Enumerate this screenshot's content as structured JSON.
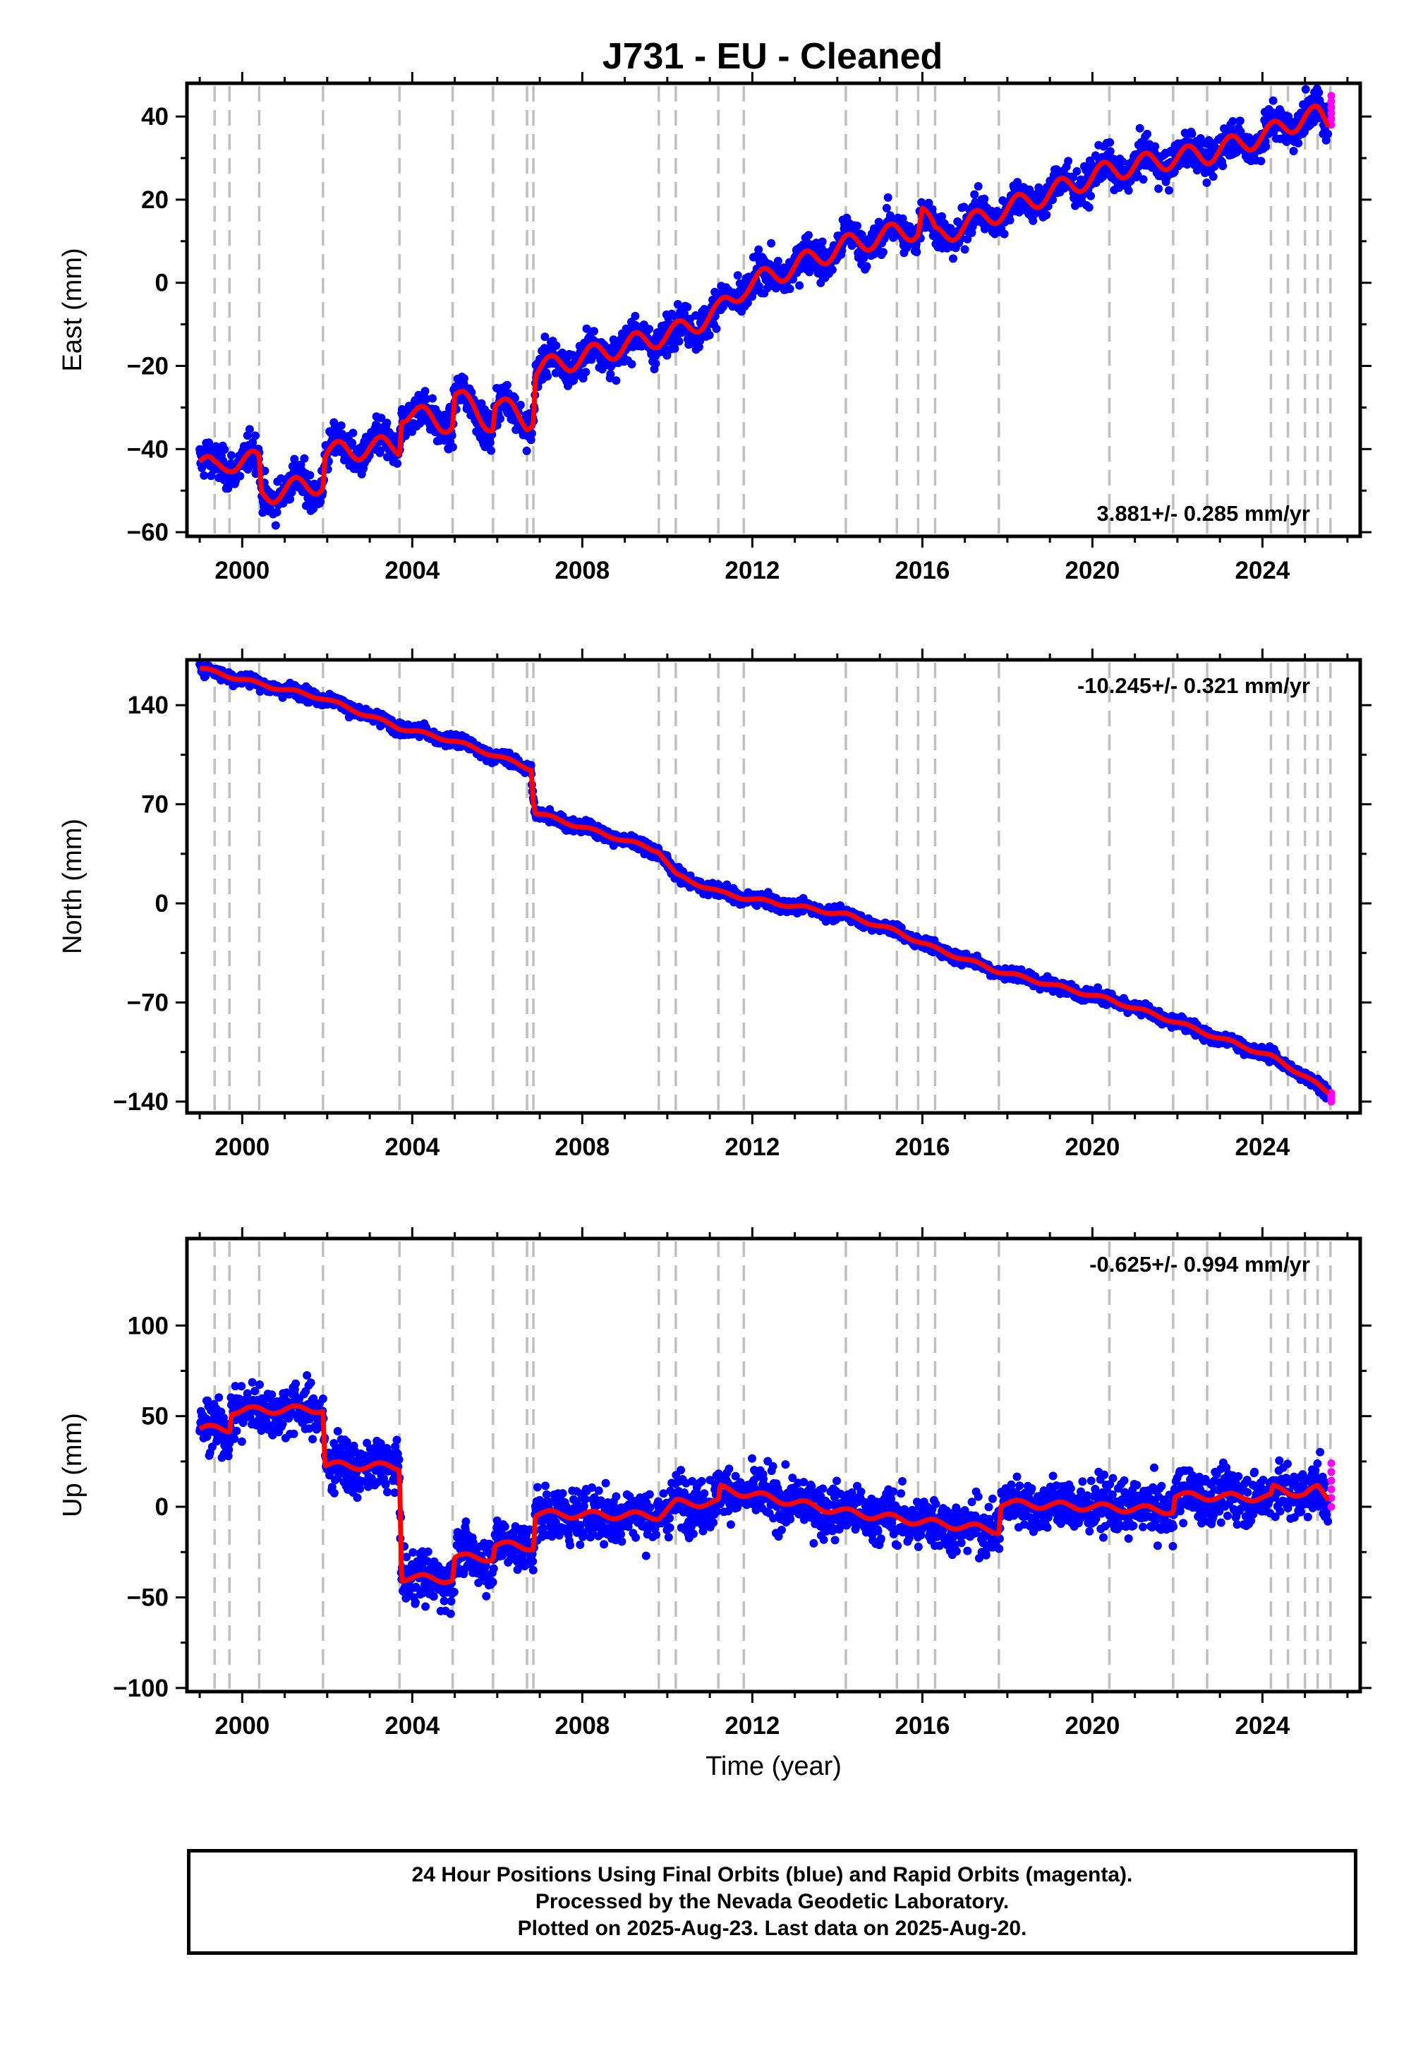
{
  "title": "J731  - EU - Cleaned",
  "footer": {
    "line1": "24 Hour Positions Using Final Orbits (blue) and Rapid Orbits (magenta).",
    "line2": "Processed by the Nevada Geodetic Laboratory.",
    "line3": "Plotted on 2025-Aug-23. Last data on 2025-Aug-20."
  },
  "colors": {
    "final": "#0000ff",
    "rapid": "#ff00ff",
    "model": "#ff0000",
    "event_lines": "#bfbfbf",
    "frame": "#000000"
  },
  "chart_data": [
    {
      "type": "scatter",
      "name": "east",
      "ylabel": "East (mm)",
      "xlabel": "",
      "xlim": [
        1998.7,
        2026.3
      ],
      "ylim": [
        -61,
        48
      ],
      "x_ticks": [
        2000,
        2004,
        2008,
        2012,
        2016,
        2020,
        2024
      ],
      "y_ticks": [
        40,
        20,
        0,
        -20,
        -40,
        -60
      ],
      "y_tick_labels": [
        "40",
        "20",
        "0",
        "−20",
        "−40",
        "−60"
      ],
      "rate": "3.881+/- 0.285 mm/yr",
      "rate_position": "bottom-right",
      "event_lines": [
        1999.35,
        1999.7,
        2000.4,
        2001.9,
        2003.7,
        2004.95,
        2005.9,
        2006.7,
        2006.85,
        2009.8,
        2010.2,
        2011.2,
        2011.8,
        2014.2,
        2015.4,
        2015.9,
        2016.3,
        2017.8,
        2020.4,
        2021.9,
        2022.7,
        2024.2,
        2024.6,
        2025.0,
        2025.3,
        2025.6
      ],
      "model_breakpoints": [
        [
          1999.0,
          -43
        ],
        [
          1999.35,
          -45
        ],
        [
          1999.7,
          -43
        ],
        [
          2000.4,
          -43
        ],
        [
          2000.45,
          -51
        ],
        [
          2001.9,
          -48
        ],
        [
          2001.95,
          -41
        ],
        [
          2003.7,
          -39
        ],
        [
          2003.75,
          -31
        ],
        [
          2004.95,
          -34
        ],
        [
          2005.0,
          -27
        ],
        [
          2005.9,
          -34
        ],
        [
          2005.95,
          -29
        ],
        [
          2006.7,
          -33
        ],
        [
          2006.85,
          -32
        ],
        [
          2006.9,
          -21
        ],
        [
          2009.8,
          -13
        ],
        [
          2010.2,
          -12
        ],
        [
          2011.2,
          -7
        ],
        [
          2011.8,
          -1
        ],
        [
          2014.2,
          9
        ],
        [
          2015.4,
          12
        ],
        [
          2015.9,
          13
        ],
        [
          2016.0,
          18
        ],
        [
          2016.3,
          11
        ],
        [
          2017.8,
          17
        ],
        [
          2020.4,
          27
        ],
        [
          2021.9,
          30
        ],
        [
          2022.7,
          31
        ],
        [
          2024.2,
          36
        ],
        [
          2024.6,
          38
        ],
        [
          2025.0,
          40
        ],
        [
          2025.3,
          40
        ],
        [
          2025.6,
          38
        ]
      ],
      "seasonal_amplitude": 2.5,
      "scatter": 2.2,
      "rapid_y": [
        38,
        45
      ]
    },
    {
      "type": "scatter",
      "name": "north",
      "ylabel": "North (mm)",
      "xlabel": "",
      "xlim": [
        1998.7,
        2026.3
      ],
      "ylim": [
        -148,
        172
      ],
      "x_ticks": [
        2000,
        2004,
        2008,
        2012,
        2016,
        2020,
        2024
      ],
      "y_ticks": [
        140,
        70,
        0,
        -70,
        -140
      ],
      "y_tick_labels": [
        "140",
        "70",
        "0",
        "−70",
        "−140"
      ],
      "rate": "-10.245+/- 0.321 mm/yr",
      "rate_position": "top-right",
      "event_lines": [
        1999.35,
        1999.7,
        2000.4,
        2001.9,
        2003.7,
        2004.95,
        2005.9,
        2006.7,
        2006.85,
        2009.8,
        2010.2,
        2011.2,
        2011.8,
        2014.2,
        2015.4,
        2015.9,
        2016.3,
        2017.8,
        2020.4,
        2021.9,
        2022.7,
        2024.2,
        2024.6,
        2025.0,
        2025.3,
        2025.6
      ],
      "model_breakpoints": [
        [
          1999.0,
          166
        ],
        [
          2000.4,
          155
        ],
        [
          2001.9,
          145
        ],
        [
          2003.7,
          124
        ],
        [
          2004.95,
          115
        ],
        [
          2005.9,
          105
        ],
        [
          2006.8,
          95
        ],
        [
          2006.85,
          72
        ],
        [
          2006.9,
          64
        ],
        [
          2009.8,
          37
        ],
        [
          2010.2,
          20
        ],
        [
          2011.2,
          8
        ],
        [
          2011.8,
          4
        ],
        [
          2014.2,
          -8
        ],
        [
          2015.4,
          -20
        ],
        [
          2016.3,
          -32
        ],
        [
          2017.8,
          -48
        ],
        [
          2020.4,
          -68
        ],
        [
          2021.9,
          -83
        ],
        [
          2022.7,
          -92
        ],
        [
          2024.2,
          -108
        ],
        [
          2025.0,
          -122
        ],
        [
          2025.6,
          -135
        ]
      ],
      "seasonal_amplitude": 1.2,
      "scatter": 2.2,
      "rapid_y": [
        -134,
        -140
      ]
    },
    {
      "type": "scatter",
      "name": "up",
      "ylabel": "Up (mm)",
      "xlabel": "Time (year)",
      "xlim": [
        1998.7,
        2026.3
      ],
      "ylim": [
        -102,
        148
      ],
      "x_ticks": [
        2000,
        2004,
        2008,
        2012,
        2016,
        2020,
        2024
      ],
      "y_ticks": [
        100,
        50,
        0,
        -50,
        -100
      ],
      "y_tick_labels": [
        "100",
        "50",
        "0",
        "−50",
        "−100"
      ],
      "rate": "-0.625+/- 0.994 mm/yr",
      "rate_position": "top-right",
      "event_lines": [
        1999.35,
        1999.7,
        2000.4,
        2001.9,
        2003.7,
        2004.95,
        2005.9,
        2006.7,
        2006.85,
        2009.8,
        2010.2,
        2011.2,
        2011.8,
        2014.2,
        2015.4,
        2015.9,
        2016.3,
        2017.8,
        2020.4,
        2021.9,
        2022.7,
        2024.2,
        2024.6,
        2025.0,
        2025.3,
        2025.6
      ],
      "model_breakpoints": [
        [
          1999.0,
          43
        ],
        [
          1999.7,
          43
        ],
        [
          1999.75,
          53
        ],
        [
          2001.9,
          54
        ],
        [
          2001.95,
          23
        ],
        [
          2003.7,
          22
        ],
        [
          2003.75,
          -39
        ],
        [
          2004.95,
          -40
        ],
        [
          2005.0,
          -28
        ],
        [
          2005.9,
          -28
        ],
        [
          2005.95,
          -21
        ],
        [
          2006.85,
          -22
        ],
        [
          2006.9,
          -4
        ],
        [
          2009.8,
          -5
        ],
        [
          2010.2,
          2
        ],
        [
          2011.2,
          2
        ],
        [
          2011.25,
          10
        ],
        [
          2014.2,
          -3
        ],
        [
          2015.9,
          -8
        ],
        [
          2017.8,
          -13
        ],
        [
          2017.85,
          2
        ],
        [
          2021.9,
          -2
        ],
        [
          2021.95,
          6
        ],
        [
          2024.2,
          5
        ],
        [
          2024.25,
          10
        ],
        [
          2025.0,
          7
        ],
        [
          2025.3,
          10
        ],
        [
          2025.6,
          3
        ]
      ],
      "seasonal_amplitude": 2.0,
      "scatter": 7.0,
      "rapid_y": [
        0,
        24
      ]
    }
  ]
}
